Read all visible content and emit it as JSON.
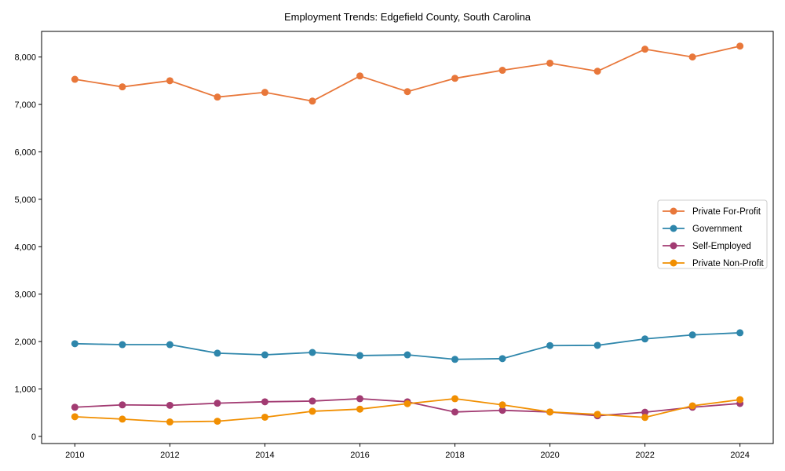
{
  "chart_data": {
    "type": "line",
    "title": "Employment Trends: Edgefield County, South Carolina",
    "xlabel": "",
    "ylabel": "",
    "x": [
      2010,
      2011,
      2012,
      2013,
      2014,
      2015,
      2016,
      2017,
      2018,
      2019,
      2020,
      2021,
      2022,
      2023,
      2024
    ],
    "xticks": [
      "2010",
      "2012",
      "2014",
      "2016",
      "2018",
      "2020",
      "2022",
      "2024"
    ],
    "xtick_values": [
      2010,
      2012,
      2014,
      2016,
      2018,
      2020,
      2022,
      2024
    ],
    "yticks": [
      "0",
      "1,000",
      "2,000",
      "3,000",
      "4,000",
      "5,000",
      "6,000",
      "7,000",
      "8,000"
    ],
    "ytick_values": [
      0,
      1000,
      2000,
      3000,
      4000,
      5000,
      6000,
      7000,
      8000
    ],
    "xlim": [
      2009.3,
      2024.7
    ],
    "ylim": [
      -150,
      8540
    ],
    "grid": false,
    "legend_position": "center-right",
    "series": [
      {
        "name": "Private For-Profit",
        "color": "#E8773A",
        "values": [
          7530,
          7370,
          7500,
          7155,
          7255,
          7070,
          7600,
          7270,
          7550,
          7720,
          7870,
          7700,
          8165,
          8000,
          8230
        ]
      },
      {
        "name": "Government",
        "color": "#2E86AB",
        "values": [
          1955,
          1935,
          1935,
          1755,
          1720,
          1770,
          1705,
          1720,
          1625,
          1640,
          1915,
          1920,
          2055,
          2140,
          2185
        ]
      },
      {
        "name": "Self-Employed",
        "color": "#A23B72",
        "values": [
          615,
          665,
          655,
          700,
          730,
          745,
          795,
          730,
          515,
          550,
          515,
          435,
          510,
          615,
          695
        ]
      },
      {
        "name": "Private Non-Profit",
        "color": "#F18F01",
        "values": [
          415,
          365,
          305,
          320,
          405,
          530,
          575,
          690,
          795,
          665,
          515,
          465,
          400,
          645,
          775
        ]
      }
    ]
  }
}
